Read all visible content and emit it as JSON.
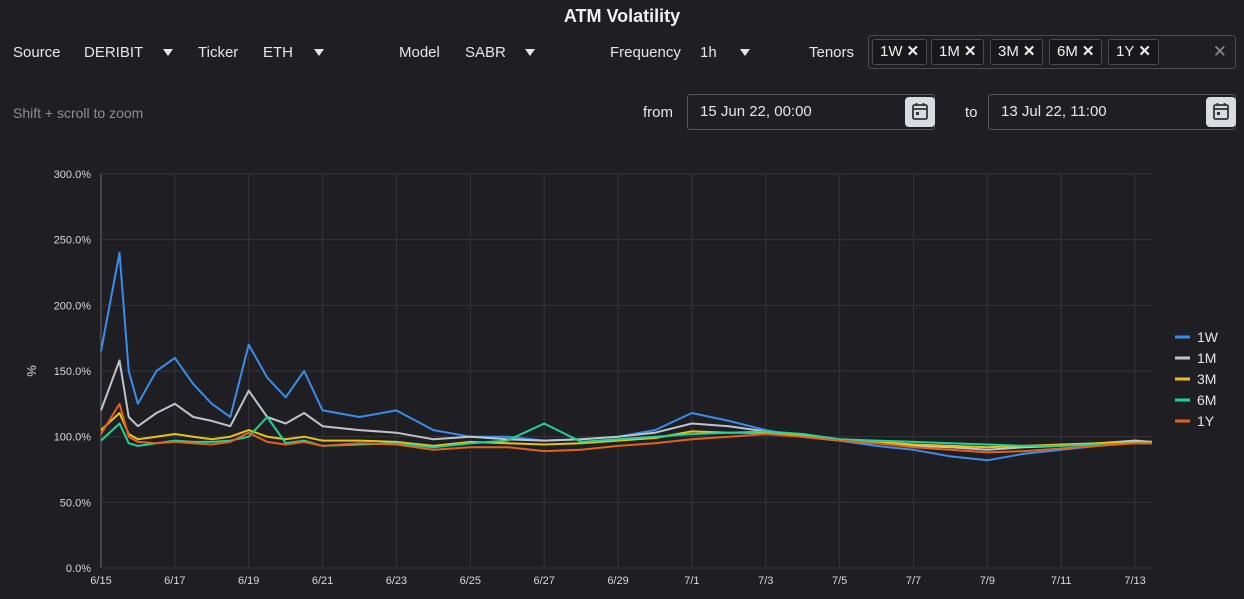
{
  "header": {
    "title": "ATM Volatility"
  },
  "controls": {
    "source_label": "Source",
    "source_value": "DERIBIT",
    "ticker_label": "Ticker",
    "ticker_value": "ETH",
    "model_label": "Model",
    "model_value": "SABR",
    "frequency_label": "Frequency",
    "frequency_value": "1h",
    "tenors_label": "Tenors",
    "tenors": [
      "1W",
      "1M",
      "3M",
      "6M",
      "1Y"
    ],
    "chip_close": "✕",
    "clear": "✕"
  },
  "range": {
    "hint": "Shift + scroll to zoom",
    "from_label": "from",
    "from_value": "15 Jun 22, 00:00",
    "to_label": "to",
    "to_value": "13 Jul 22, 11:00"
  },
  "colors": {
    "bg": "#1f1f23",
    "grid": "#34343a",
    "text": "#d8d8d8"
  },
  "chart_data": {
    "type": "line",
    "ylabel": "%",
    "ylim": [
      0,
      300
    ],
    "yticks": [
      "0.0%",
      "50.0%",
      "100.0%",
      "150.0%",
      "200.0%",
      "250.0%",
      "300.0%"
    ],
    "xlim": [
      "2022-06-15",
      "2022-07-13T11:00"
    ],
    "xticks": [
      "6/15",
      "6/17",
      "6/19",
      "6/21",
      "6/23",
      "6/25",
      "6/27",
      "6/29",
      "7/1",
      "7/3",
      "7/5",
      "7/7",
      "7/9",
      "7/11",
      "7/13"
    ],
    "grid": true,
    "legend": "right",
    "series": [
      {
        "name": "1W",
        "color": "#3a8de8",
        "x": [
          "2022-06-15",
          "2022-06-15T12:00",
          "2022-06-15T18:00",
          "2022-06-16",
          "2022-06-16T12:00",
          "2022-06-17",
          "2022-06-17T12:00",
          "2022-06-18",
          "2022-06-18T12:00",
          "2022-06-19",
          "2022-06-19T12:00",
          "2022-06-20",
          "2022-06-20T12:00",
          "2022-06-21",
          "2022-06-22",
          "2022-06-23",
          "2022-06-24",
          "2022-06-25",
          "2022-06-26",
          "2022-06-27",
          "2022-06-28",
          "2022-06-29",
          "2022-06-30",
          "2022-07-01",
          "2022-07-02",
          "2022-07-03",
          "2022-07-04",
          "2022-07-05",
          "2022-07-06",
          "2022-07-07",
          "2022-07-08",
          "2022-07-09",
          "2022-07-10",
          "2022-07-11",
          "2022-07-12",
          "2022-07-13",
          "2022-07-13T11:00"
        ],
        "values": [
          165,
          240,
          150,
          125,
          150,
          160,
          140,
          125,
          115,
          170,
          145,
          130,
          150,
          120,
          115,
          120,
          105,
          100,
          100,
          97,
          98,
          100,
          105,
          118,
          112,
          105,
          100,
          97,
          93,
          90,
          85,
          82,
          87,
          90,
          93,
          97,
          95
        ]
      },
      {
        "name": "1M",
        "color": "#bfc4cc",
        "x": [
          "2022-06-15",
          "2022-06-15T12:00",
          "2022-06-15T18:00",
          "2022-06-16",
          "2022-06-16T12:00",
          "2022-06-17",
          "2022-06-17T12:00",
          "2022-06-18",
          "2022-06-18T12:00",
          "2022-06-19",
          "2022-06-19T12:00",
          "2022-06-20",
          "2022-06-20T12:00",
          "2022-06-21",
          "2022-06-22",
          "2022-06-23",
          "2022-06-24",
          "2022-06-25",
          "2022-06-26",
          "2022-06-27",
          "2022-06-28",
          "2022-06-29",
          "2022-06-30",
          "2022-07-01",
          "2022-07-02",
          "2022-07-03",
          "2022-07-04",
          "2022-07-05",
          "2022-07-06",
          "2022-07-07",
          "2022-07-08",
          "2022-07-09",
          "2022-07-10",
          "2022-07-11",
          "2022-07-12",
          "2022-07-13",
          "2022-07-13T11:00"
        ],
        "values": [
          120,
          158,
          115,
          108,
          118,
          125,
          115,
          112,
          108,
          135,
          115,
          110,
          118,
          108,
          105,
          103,
          98,
          100,
          98,
          97,
          98,
          100,
          103,
          110,
          108,
          104,
          100,
          97,
          95,
          93,
          92,
          90,
          92,
          93,
          95,
          97,
          96
        ]
      },
      {
        "name": "3M",
        "color": "#e8c21a",
        "x": [
          "2022-06-15",
          "2022-06-15T12:00",
          "2022-06-15T18:00",
          "2022-06-16",
          "2022-06-16T12:00",
          "2022-06-17",
          "2022-06-17T12:00",
          "2022-06-18",
          "2022-06-18T12:00",
          "2022-06-19",
          "2022-06-19T12:00",
          "2022-06-20",
          "2022-06-20T12:00",
          "2022-06-21",
          "2022-06-22",
          "2022-06-23",
          "2022-06-24",
          "2022-06-25",
          "2022-06-26",
          "2022-06-27",
          "2022-06-28",
          "2022-06-29",
          "2022-06-30",
          "2022-07-01",
          "2022-07-02",
          "2022-07-03",
          "2022-07-04",
          "2022-07-05",
          "2022-07-06",
          "2022-07-07",
          "2022-07-08",
          "2022-07-09",
          "2022-07-10",
          "2022-07-11",
          "2022-07-12",
          "2022-07-13",
          "2022-07-13T11:00"
        ],
        "values": [
          105,
          118,
          102,
          98,
          100,
          102,
          100,
          98,
          100,
          105,
          100,
          98,
          100,
          97,
          97,
          96,
          93,
          96,
          95,
          94,
          95,
          97,
          99,
          104,
          103,
          103,
          101,
          98,
          96,
          94,
          93,
          92,
          93,
          94,
          95,
          96,
          96
        ]
      },
      {
        "name": "6M",
        "color": "#1fd39a",
        "x": [
          "2022-06-15",
          "2022-06-15T12:00",
          "2022-06-15T18:00",
          "2022-06-16",
          "2022-06-16T12:00",
          "2022-06-17",
          "2022-06-17T12:00",
          "2022-06-18",
          "2022-06-18T12:00",
          "2022-06-19",
          "2022-06-19T12:00",
          "2022-06-20",
          "2022-06-20T12:00",
          "2022-06-21",
          "2022-06-22",
          "2022-06-23",
          "2022-06-24",
          "2022-06-25",
          "2022-06-26",
          "2022-06-27",
          "2022-06-28",
          "2022-06-29",
          "2022-06-30",
          "2022-07-01",
          "2022-07-02",
          "2022-07-03",
          "2022-07-04",
          "2022-07-05",
          "2022-07-06",
          "2022-07-07",
          "2022-07-08",
          "2022-07-09",
          "2022-07-10",
          "2022-07-11",
          "2022-07-12",
          "2022-07-13",
          "2022-07-13T11:00"
        ],
        "values": [
          97,
          110,
          95,
          93,
          95,
          97,
          96,
          96,
          97,
          100,
          115,
          95,
          97,
          93,
          94,
          95,
          92,
          95,
          97,
          110,
          96,
          98,
          100,
          102,
          103,
          104,
          102,
          98,
          97,
          96,
          95,
          94,
          93,
          93,
          94,
          95,
          95
        ]
      },
      {
        "name": "1Y",
        "color": "#e0621e",
        "x": [
          "2022-06-15",
          "2022-06-15T12:00",
          "2022-06-15T18:00",
          "2022-06-16",
          "2022-06-16T12:00",
          "2022-06-17",
          "2022-06-17T12:00",
          "2022-06-18",
          "2022-06-18T12:00",
          "2022-06-19",
          "2022-06-19T12:00",
          "2022-06-20",
          "2022-06-20T12:00",
          "2022-06-21",
          "2022-06-22",
          "2022-06-23",
          "2022-06-24",
          "2022-06-25",
          "2022-06-26",
          "2022-06-27",
          "2022-06-28",
          "2022-06-29",
          "2022-06-30",
          "2022-07-01",
          "2022-07-02",
          "2022-07-03",
          "2022-07-04",
          "2022-07-05",
          "2022-07-06",
          "2022-07-07",
          "2022-07-08",
          "2022-07-09",
          "2022-07-10",
          "2022-07-11",
          "2022-07-12",
          "2022-07-13",
          "2022-07-13T11:00"
        ],
        "values": [
          102,
          125,
          100,
          96,
          95,
          96,
          95,
          94,
          96,
          103,
          96,
          94,
          96,
          93,
          95,
          94,
          90,
          92,
          92,
          89,
          90,
          93,
          95,
          98,
          100,
          102,
          100,
          97,
          95,
          92,
          90,
          88,
          89,
          91,
          93,
          95,
          95
        ]
      }
    ]
  }
}
